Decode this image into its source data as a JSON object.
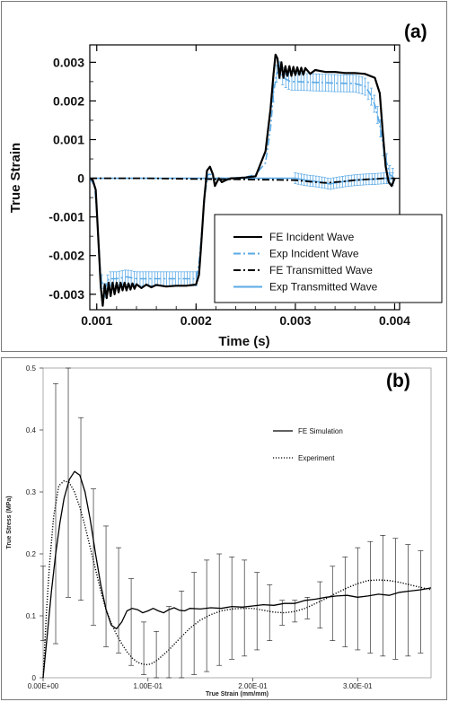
{
  "chart_data": [
    {
      "panel_label": "(a)",
      "type": "line",
      "xlabel": "Time (s)",
      "ylabel": "True Strain",
      "xlim": [
        0.00093,
        0.00405
      ],
      "ylim": [
        -0.0034,
        0.00345
      ],
      "xticks": [
        "0.001",
        "0.002",
        "0.003",
        "0.004"
      ],
      "yticks": [
        "0.003",
        "0.002",
        "0.001",
        "0",
        "-0.001",
        "-0.002",
        "-0.003"
      ],
      "legend_position": "lower-right",
      "series": [
        {
          "name": "FE Incident Wave",
          "color": "#000000",
          "style": "solid",
          "x": [
            0.00093,
            0.00096,
            0.00099,
            0.00102,
            0.00104,
            0.00106,
            0.00108,
            0.0011,
            0.00112,
            0.00114,
            0.00116,
            0.00118,
            0.0012,
            0.00122,
            0.00124,
            0.00126,
            0.00128,
            0.0013,
            0.00132,
            0.00134,
            0.00136,
            0.00138,
            0.0014,
            0.00145,
            0.0015,
            0.00155,
            0.0016,
            0.0017,
            0.0018,
            0.0019,
            0.002,
            0.00203,
            0.00205,
            0.00208,
            0.00211,
            0.00214,
            0.00217,
            0.00219,
            0.00221,
            0.00223,
            0.00226,
            0.0023,
            0.00235,
            0.0024,
            0.0025,
            0.0026,
            0.0027,
            0.00275,
            0.00278,
            0.0028,
            0.00282,
            0.00284,
            0.00286,
            0.00288,
            0.0029,
            0.00292,
            0.00294,
            0.00296,
            0.00298,
            0.003,
            0.00302,
            0.00304,
            0.00306,
            0.00308,
            0.0031,
            0.00315,
            0.0032,
            0.0033,
            0.0034,
            0.0035,
            0.0036,
            0.0037,
            0.0038,
            0.00385,
            0.00388,
            0.00391,
            0.00394,
            0.00397,
            0.004
          ],
          "y": [
            0.0,
            -5e-05,
            -0.0003,
            -0.0018,
            -0.0028,
            -0.0033,
            -0.00275,
            -0.0031,
            -0.0027,
            -0.00305,
            -0.0027,
            -0.003,
            -0.0027,
            -0.00295,
            -0.0027,
            -0.0029,
            -0.0027,
            -0.0029,
            -0.00272,
            -0.00288,
            -0.00272,
            -0.00286,
            -0.00274,
            -0.00284,
            -0.00275,
            -0.00282,
            -0.00276,
            -0.0028,
            -0.00278,
            -0.00278,
            -0.00275,
            -0.0025,
            -0.0018,
            -0.0006,
            0.0002,
            0.0003,
            0.0001,
            -0.0002,
            -0.0001,
            0.0,
            -0.0001,
            -5e-05,
            0.0,
            0.0,
            2e-05,
            5e-05,
            0.0007,
            0.0018,
            0.0027,
            0.0032,
            0.0031,
            0.0026,
            0.003,
            0.0026,
            0.0029,
            0.00265,
            0.0029,
            0.00265,
            0.00288,
            0.00267,
            0.00287,
            0.00268,
            0.00286,
            0.00268,
            0.00285,
            0.0027,
            0.0028,
            0.00275,
            0.00275,
            0.00272,
            0.00272,
            0.0027,
            0.0026,
            0.0022,
            0.0012,
            0.0003,
            -0.0001,
            -0.0002,
            0.0
          ]
        },
        {
          "name": "Exp Incident Wave",
          "color": "#5aa9e6",
          "style": "dash-dot",
          "x": [
            0.00093,
            0.00098,
            0.00101,
            0.00104,
            0.00108,
            0.00112,
            0.0012,
            0.0013,
            0.0014,
            0.0015,
            0.0016,
            0.0017,
            0.0018,
            0.0019,
            0.002,
            0.00203,
            0.00206,
            0.00209,
            0.00212,
            0.00215,
            0.00218,
            0.00222,
            0.0023,
            0.0025,
            0.0026,
            0.0027,
            0.00275,
            0.00278,
            0.00281,
            0.00284,
            0.00288,
            0.00295,
            0.003,
            0.0032,
            0.0034,
            0.0036,
            0.0037,
            0.00375,
            0.0038,
            0.00385,
            0.0039,
            0.00395,
            0.004
          ],
          "y": [
            0.0,
            -0.0002,
            -0.0012,
            -0.0026,
            -0.0029,
            -0.0026,
            -0.0026,
            -0.00255,
            -0.0026,
            -0.0026,
            -0.0026,
            -0.0026,
            -0.0026,
            -0.0026,
            -0.0026,
            -0.0022,
            -0.0013,
            -0.0004,
            0.0001,
            0.0001,
            0.0,
            0.0,
            0.0,
            3e-05,
            0.0001,
            0.0004,
            0.0013,
            0.0022,
            0.0027,
            0.0028,
            0.0026,
            0.0025,
            0.0025,
            0.00248,
            0.00246,
            0.00245,
            0.00238,
            0.0022,
            0.0019,
            0.0014,
            0.0006,
            0.0001,
            0.0
          ]
        },
        {
          "name": "FE Transmitted Wave",
          "color": "#000000",
          "style": "dash-dot",
          "x": [
            0.00093,
            0.0015,
            0.002,
            0.0025,
            0.003,
            0.0032,
            0.0033,
            0.0034,
            0.0035,
            0.0036,
            0.0037,
            0.0038,
            0.0039,
            0.004
          ],
          "y": [
            0.0,
            0.0,
            -2e-05,
            -3e-05,
            -5e-05,
            -0.0001,
            -0.00012,
            -0.0001,
            -8e-05,
            -5e-05,
            -3e-05,
            -2e-05,
            0.0,
            0.0
          ]
        },
        {
          "name": "Exp Transmitted Wave",
          "color": "#5aa9e6",
          "style": "solid",
          "x": [
            0.00093,
            0.0015,
            0.002,
            0.0025,
            0.003,
            0.0031,
            0.0032,
            0.0033,
            0.00335,
            0.0034,
            0.0035,
            0.0036,
            0.0037,
            0.0038,
            0.0039,
            0.004
          ],
          "y": [
            0.0,
            0.0,
            0.0,
            0.0,
            0.0,
            -5e-05,
            -8e-05,
            -0.00012,
            -0.00015,
            -0.00012,
            -8e-05,
            -5e-05,
            -3e-05,
            -2e-05,
            0.0,
            0.0
          ]
        }
      ],
      "error_bars": [
        {
          "series": "Exp Incident Wave",
          "x_range": [
            0.00105,
            0.002
          ],
          "count": 33,
          "halfwidth": 0.00018
        },
        {
          "series": "Exp Incident Wave",
          "x_range": [
            0.00278,
            0.00398
          ],
          "count": 40,
          "halfwidth": 0.00022
        },
        {
          "series": "Exp Transmitted Wave",
          "x_range": [
            0.003,
            0.00398
          ],
          "count": 34,
          "halfwidth": 0.00014
        }
      ]
    },
    {
      "panel_label": "(b)",
      "type": "line",
      "xlabel": "True Strain (mm/mm)",
      "ylabel": "True Stress (MPa)",
      "xlim": [
        0.0,
        0.37
      ],
      "ylim": [
        0.0,
        0.5
      ],
      "xticks": [
        "0.00E+00",
        "1.00E-01",
        "2.00E-01",
        "3.00E-01"
      ],
      "xtick_values": [
        0.0,
        0.1,
        0.2,
        0.3
      ],
      "yticks": [
        "0.5",
        "0.4",
        "0.3",
        "0.2",
        "0.1",
        "0"
      ],
      "ytick_values": [
        0.5,
        0.4,
        0.3,
        0.2,
        0.1,
        0.0
      ],
      "legend_position": "top-right",
      "series": [
        {
          "name": "FE Simulation",
          "color": "#000000",
          "style": "solid",
          "x": [
            0.0,
            0.004,
            0.008,
            0.012,
            0.016,
            0.02,
            0.025,
            0.03,
            0.035,
            0.04,
            0.045,
            0.05,
            0.055,
            0.06,
            0.065,
            0.07,
            0.075,
            0.08,
            0.085,
            0.09,
            0.095,
            0.1,
            0.105,
            0.11,
            0.115,
            0.12,
            0.125,
            0.13,
            0.135,
            0.14,
            0.15,
            0.16,
            0.17,
            0.18,
            0.19,
            0.2,
            0.21,
            0.22,
            0.23,
            0.24,
            0.25,
            0.26,
            0.27,
            0.28,
            0.29,
            0.3,
            0.31,
            0.32,
            0.33,
            0.34,
            0.35,
            0.36,
            0.37
          ],
          "y": [
            0.0,
            0.07,
            0.14,
            0.2,
            0.25,
            0.29,
            0.32,
            0.333,
            0.327,
            0.3,
            0.255,
            0.2,
            0.15,
            0.11,
            0.085,
            0.079,
            0.09,
            0.108,
            0.112,
            0.11,
            0.105,
            0.108,
            0.112,
            0.108,
            0.105,
            0.11,
            0.113,
            0.109,
            0.108,
            0.112,
            0.111,
            0.113,
            0.112,
            0.115,
            0.114,
            0.116,
            0.118,
            0.117,
            0.12,
            0.12,
            0.125,
            0.127,
            0.13,
            0.132,
            0.133,
            0.13,
            0.132,
            0.135,
            0.133,
            0.138,
            0.14,
            0.142,
            0.145
          ]
        },
        {
          "name": "Experiment",
          "color": "#000000",
          "style": "dotted",
          "x": [
            0.0,
            0.003,
            0.006,
            0.01,
            0.015,
            0.02,
            0.025,
            0.03,
            0.035,
            0.04,
            0.045,
            0.05,
            0.055,
            0.06,
            0.065,
            0.07,
            0.075,
            0.08,
            0.085,
            0.09,
            0.095,
            0.1,
            0.105,
            0.11,
            0.12,
            0.13,
            0.14,
            0.15,
            0.16,
            0.17,
            0.18,
            0.19,
            0.2,
            0.21,
            0.22,
            0.23,
            0.24,
            0.25,
            0.26,
            0.27,
            0.28,
            0.29,
            0.3,
            0.31,
            0.32,
            0.33,
            0.34,
            0.35,
            0.36,
            0.37
          ],
          "y": [
            0.0,
            0.1,
            0.18,
            0.26,
            0.31,
            0.318,
            0.315,
            0.3,
            0.275,
            0.245,
            0.21,
            0.175,
            0.14,
            0.11,
            0.088,
            0.07,
            0.055,
            0.042,
            0.032,
            0.025,
            0.022,
            0.021,
            0.024,
            0.03,
            0.045,
            0.063,
            0.08,
            0.093,
            0.102,
            0.108,
            0.111,
            0.112,
            0.112,
            0.109,
            0.106,
            0.105,
            0.107,
            0.112,
            0.12,
            0.128,
            0.137,
            0.145,
            0.152,
            0.157,
            0.158,
            0.157,
            0.154,
            0.15,
            0.146,
            0.142
          ]
        }
      ],
      "error_bars": {
        "series": "Experiment",
        "points": [
          {
            "x": 0.0,
            "low": 0.06,
            "high": 0.18
          },
          {
            "x": 0.012,
            "low": 0.055,
            "high": 0.475
          },
          {
            "x": 0.024,
            "low": 0.13,
            "high": 0.5
          },
          {
            "x": 0.036,
            "low": 0.125,
            "high": 0.42
          },
          {
            "x": 0.048,
            "low": 0.085,
            "high": 0.305
          },
          {
            "x": 0.06,
            "low": 0.05,
            "high": 0.245
          },
          {
            "x": 0.072,
            "low": 0.04,
            "high": 0.21
          },
          {
            "x": 0.084,
            "low": 0.02,
            "high": 0.16
          },
          {
            "x": 0.096,
            "low": 0.005,
            "high": 0.09
          },
          {
            "x": 0.108,
            "low": 0.0,
            "high": 0.075
          },
          {
            "x": 0.12,
            "low": 0.0,
            "high": 0.115
          },
          {
            "x": 0.132,
            "low": 0.0,
            "high": 0.14
          },
          {
            "x": 0.144,
            "low": 0.005,
            "high": 0.17
          },
          {
            "x": 0.156,
            "low": 0.01,
            "high": 0.19
          },
          {
            "x": 0.168,
            "low": 0.02,
            "high": 0.2
          },
          {
            "x": 0.18,
            "low": 0.03,
            "high": 0.195
          },
          {
            "x": 0.192,
            "low": 0.035,
            "high": 0.19
          },
          {
            "x": 0.204,
            "low": 0.045,
            "high": 0.17
          },
          {
            "x": 0.216,
            "low": 0.06,
            "high": 0.15
          },
          {
            "x": 0.228,
            "low": 0.085,
            "high": 0.125
          },
          {
            "x": 0.24,
            "low": 0.09,
            "high": 0.125
          },
          {
            "x": 0.252,
            "low": 0.095,
            "high": 0.13
          },
          {
            "x": 0.264,
            "low": 0.08,
            "high": 0.155
          },
          {
            "x": 0.276,
            "low": 0.06,
            "high": 0.18
          },
          {
            "x": 0.288,
            "low": 0.05,
            "high": 0.195
          },
          {
            "x": 0.3,
            "low": 0.045,
            "high": 0.21
          },
          {
            "x": 0.312,
            "low": 0.04,
            "high": 0.22
          },
          {
            "x": 0.324,
            "low": 0.035,
            "high": 0.23
          },
          {
            "x": 0.336,
            "low": 0.03,
            "high": 0.225
          },
          {
            "x": 0.348,
            "low": 0.035,
            "high": 0.215
          },
          {
            "x": 0.36,
            "low": 0.04,
            "high": 0.205
          }
        ]
      }
    }
  ]
}
